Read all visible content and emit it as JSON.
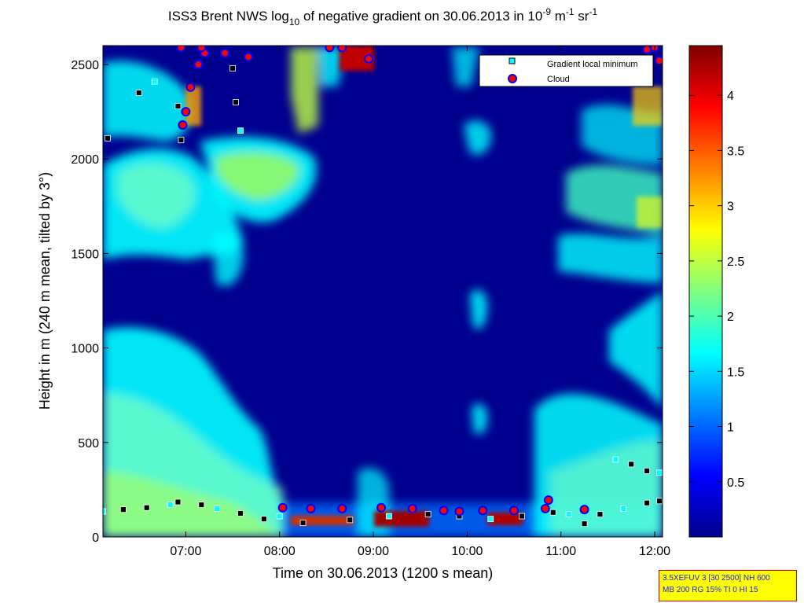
{
  "chart_data": {
    "type": "heatmap",
    "title": {
      "prefix": "ISS3 Brent NWS log",
      "sub": "10",
      "middle": " of negative gradient on 30.06.2013 in 10",
      "sup1": "-9",
      "unit1": " m",
      "sup2": "-1",
      "unit2": " sr",
      "sup3": "-1"
    },
    "xlabel": "Time on 30.06.2013 (1200 s mean)",
    "ylabel": "Height in m (240 m mean, tilted by 3°)",
    "xlim": [
      "06:07",
      "12:05"
    ],
    "ylim": [
      0,
      2600
    ],
    "x_ticks": [
      "07:00",
      "08:00",
      "09:00",
      "10:00",
      "11:00",
      "12:00"
    ],
    "y_ticks": [
      0,
      500,
      1000,
      1500,
      2000,
      2500
    ],
    "colorbar": {
      "range": [
        0,
        4.45
      ],
      "ticks": [
        0.5,
        1,
        1.5,
        2,
        2.5,
        3,
        3.5,
        4
      ],
      "colormap": "jet"
    },
    "legend": {
      "placement": "top-right",
      "entries": [
        {
          "label": "Gradient local minimum",
          "marker": "square",
          "color": "#00ffff"
        },
        {
          "label": "Cloud",
          "marker": "circle",
          "color": "#ff0000",
          "edge": "#0000ff"
        }
      ]
    },
    "series": [
      {
        "name": "Gradient local minimum",
        "points": [
          [
            "06:07",
            135
          ],
          [
            "06:20",
            145
          ],
          [
            "06:35",
            155
          ],
          [
            "06:50",
            170
          ],
          [
            "06:55",
            185
          ],
          [
            "07:10",
            170
          ],
          [
            "07:20",
            150
          ],
          [
            "07:35",
            125
          ],
          [
            "07:50",
            95
          ],
          [
            "08:00",
            110
          ],
          [
            "08:15",
            75
          ],
          [
            "08:45",
            90
          ],
          [
            "09:10",
            110
          ],
          [
            "09:35",
            120
          ],
          [
            "09:55",
            110
          ],
          [
            "10:15",
            95
          ],
          [
            "10:35",
            110
          ],
          [
            "10:55",
            130
          ],
          [
            "11:05",
            120
          ],
          [
            "11:15",
            70
          ],
          [
            "11:25",
            120
          ],
          [
            "11:40",
            150
          ],
          [
            "11:55",
            180
          ],
          [
            "12:03",
            190
          ],
          [
            "11:35",
            410
          ],
          [
            "11:45",
            385
          ],
          [
            "11:55",
            350
          ],
          [
            "12:03",
            340
          ],
          [
            "07:30",
            2480
          ],
          [
            "07:32",
            2300
          ],
          [
            "07:35",
            2150
          ],
          [
            "06:55",
            2280
          ],
          [
            "06:57",
            2100
          ],
          [
            "06:05",
            2050
          ],
          [
            "06:10",
            2110
          ],
          [
            "06:30",
            2350
          ],
          [
            "06:40",
            2410
          ]
        ]
      },
      {
        "name": "Cloud",
        "points": [
          [
            "08:02",
            155
          ],
          [
            "08:20",
            150
          ],
          [
            "08:40",
            150
          ],
          [
            "09:05",
            155
          ],
          [
            "09:25",
            150
          ],
          [
            "09:45",
            140
          ],
          [
            "09:55",
            135
          ],
          [
            "10:10",
            140
          ],
          [
            "10:30",
            140
          ],
          [
            "10:50",
            150
          ],
          [
            "10:52",
            195
          ],
          [
            "11:15",
            145
          ],
          [
            "06:58",
            2180
          ],
          [
            "07:00",
            2250
          ],
          [
            "07:03",
            2380
          ],
          [
            "07:08",
            2500
          ],
          [
            "07:12",
            2560
          ],
          [
            "07:25",
            2560
          ],
          [
            "07:40",
            2540
          ],
          [
            "06:57",
            2590
          ],
          [
            "07:10",
            2590
          ],
          [
            "08:32",
            2590
          ],
          [
            "08:40",
            2590
          ],
          [
            "08:57",
            2530
          ],
          [
            "11:55",
            2580
          ],
          [
            "12:00",
            2590
          ],
          [
            "12:03",
            2520
          ]
        ]
      }
    ]
  },
  "info_box": {
    "line1": "3.5XEFUV 3 [30 2500] NH 600",
    "line2": "MB 200 RG 15% TI 0 HI 15"
  }
}
